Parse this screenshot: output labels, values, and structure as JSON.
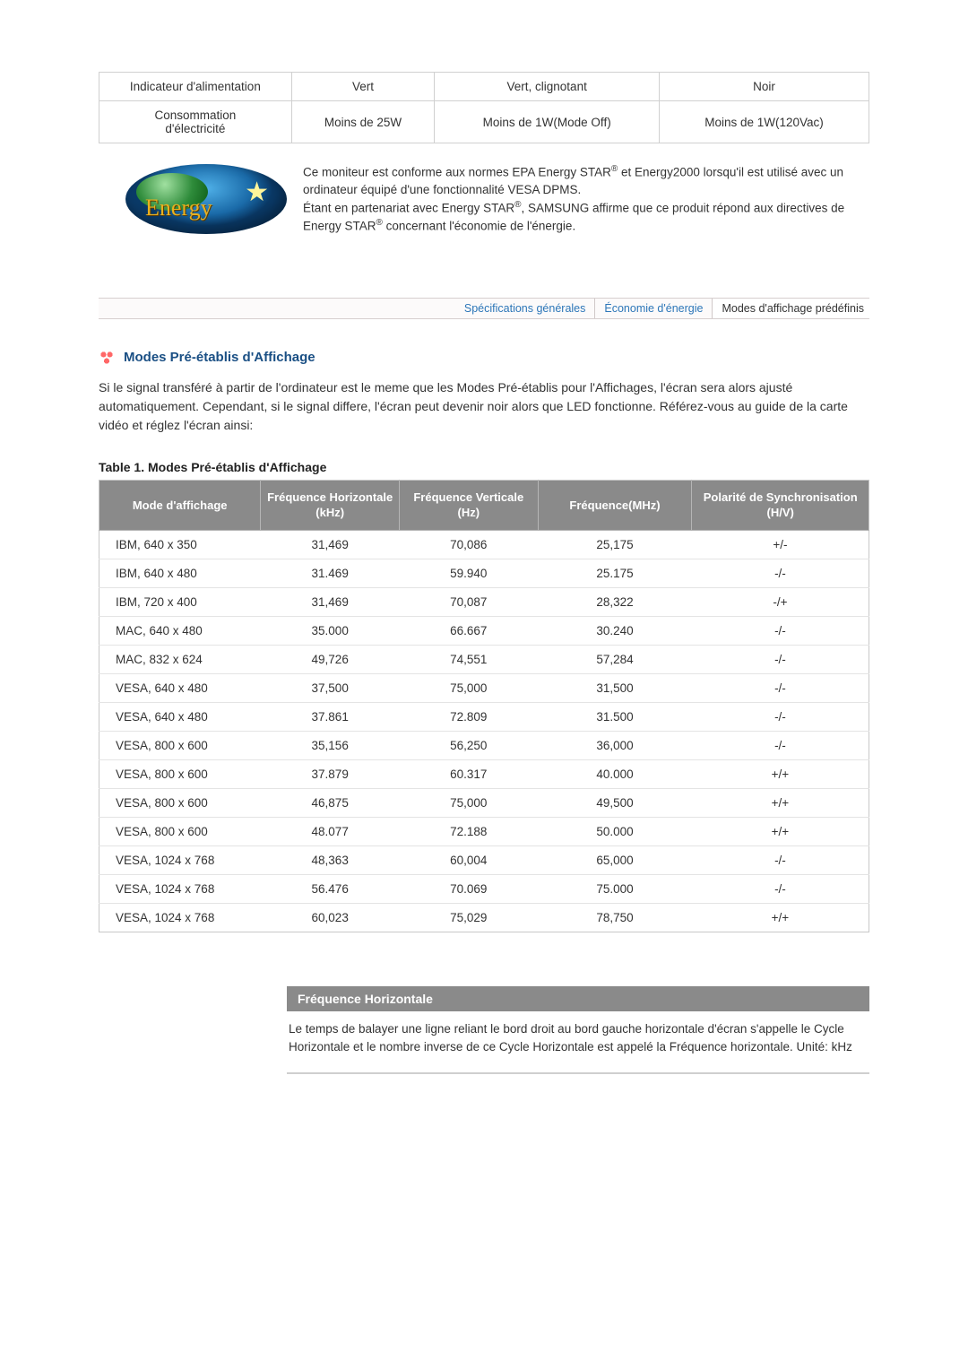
{
  "power_table": {
    "rows": [
      [
        "Indicateur d'alimentation",
        "Vert",
        "Vert, clignotant",
        "Noir"
      ],
      [
        "Consommation d'électricité",
        "Moins de 25W",
        "Moins de 1W(Mode Off)",
        "Moins de 1W(120Vac)"
      ]
    ]
  },
  "energy_star_text": {
    "line1a": "Ce moniteur est conforme aux normes EPA Energy STAR",
    "line1b": " et Energy2000 lorsqu'il est utilisé avec un ordinateur équipé d'une fonctionnalité VESA DPMS.",
    "line2a": "Étant en partenariat avec Energy STAR",
    "line2b": ", SAMSUNG affirme que ce produit répond aux directives de Energy STAR",
    "line2c": " concernant l'économie de l'énergie."
  },
  "energy_logo": {
    "text": "Energy",
    "star": "★"
  },
  "tabs": {
    "t0": "Spécifications générales",
    "t1": "Économie d'énergie",
    "t2": "Modes d'affichage prédéfinis"
  },
  "section_title": "Modes Pré-établis d'Affichage",
  "intro_text": "Si le signal transféré à partir de l'ordinateur est le meme que les Modes Pré-établis pour l'Affichages, l'écran sera alors ajusté automatiquement. Cependant, si le signal differe, l'écran peut devenir noir alors que LED fonctionne. Référez-vous au guide de la carte vidéo et réglez l'écran ainsi:",
  "table_title": "Table 1. Modes Pré-établis d'Affichage",
  "modes_headers": {
    "h0": "Mode d'affichage",
    "h1": "Fréquence Horizontale (kHz)",
    "h2": "Fréquence Verticale (Hz)",
    "h3": "Fréquence(MHz)",
    "h4": "Polarité de Synchronisation (H/V)"
  },
  "modes_rows": [
    [
      "IBM, 640 x 350",
      "31,469",
      "70,086",
      "25,175",
      "+/-"
    ],
    [
      "IBM, 640 x 480",
      "31.469",
      "59.940",
      "25.175",
      "-/-"
    ],
    [
      "IBM, 720 x 400",
      "31,469",
      "70,087",
      "28,322",
      "-/+"
    ],
    [
      "MAC, 640 x 480",
      "35.000",
      "66.667",
      "30.240",
      "-/-"
    ],
    [
      "MAC, 832 x 624",
      "49,726",
      "74,551",
      "57,284",
      "-/-"
    ],
    [
      "VESA, 640 x 480",
      "37,500",
      "75,000",
      "31,500",
      "-/-"
    ],
    [
      "VESA, 640 x 480",
      "37.861",
      "72.809",
      "31.500",
      "-/-"
    ],
    [
      "VESA, 800 x 600",
      "35,156",
      "56,250",
      "36,000",
      "-/-"
    ],
    [
      "VESA, 800 x 600",
      "37.879",
      "60.317",
      "40.000",
      "+/+"
    ],
    [
      "VESA, 800 x 600",
      "46,875",
      "75,000",
      "49,500",
      "+/+"
    ],
    [
      "VESA, 800 x 600",
      "48.077",
      "72.188",
      "50.000",
      "+/+"
    ],
    [
      "VESA, 1024 x 768",
      "48,363",
      "60,004",
      "65,000",
      "-/-"
    ],
    [
      "VESA, 1024 x 768",
      "56.476",
      "70.069",
      "75.000",
      "-/-"
    ],
    [
      "VESA, 1024 x 768",
      "60,023",
      "75,029",
      "78,750",
      "+/+"
    ]
  ],
  "definition": {
    "title": "Fréquence Horizontale",
    "body": "Le temps de balayer une ligne reliant le bord droit au bord gauche horizontale d'écran s'appelle le Cycle Horizontale et le nombre inverse de ce Cycle Horizontale est appelé la Fréquence horizontale. Unité: kHz"
  }
}
